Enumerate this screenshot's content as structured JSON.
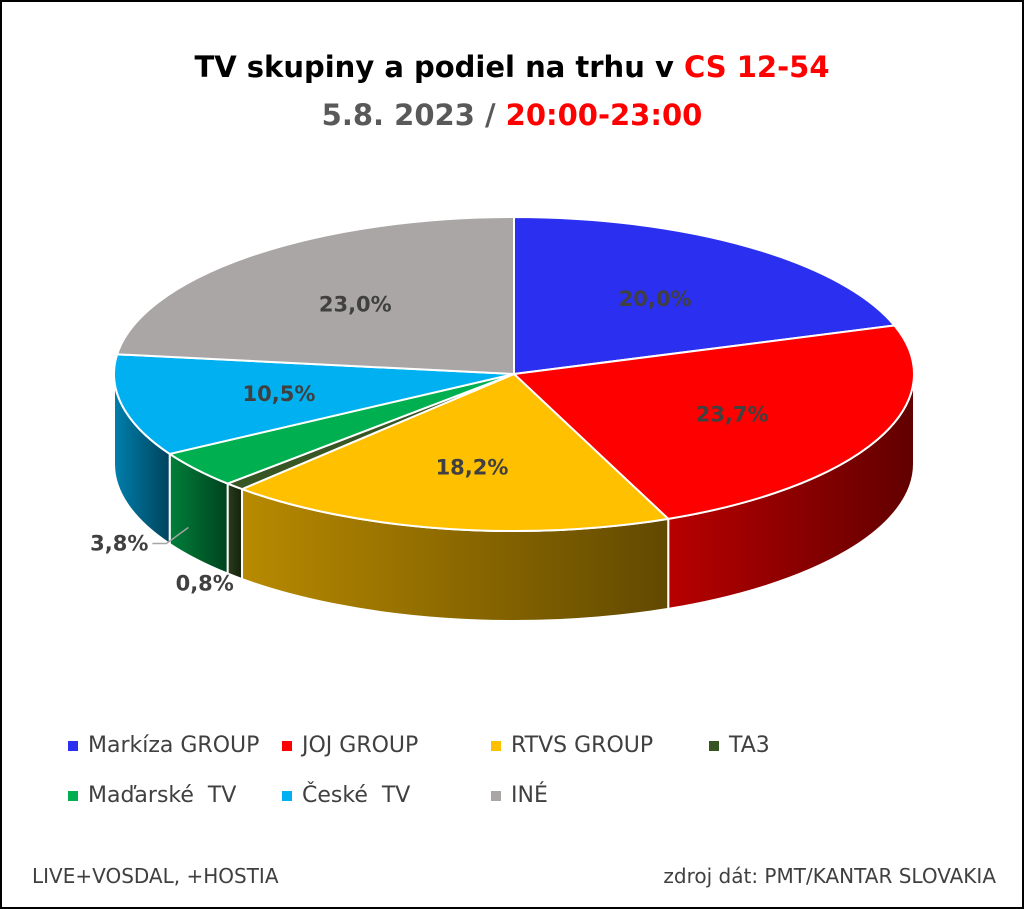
{
  "title": {
    "line1_prefix": "TV skupiny a podiel na trhu v ",
    "line1_highlight": "CS 12-54",
    "line2_prefix": "5.8. 2023 / ",
    "line2_highlight": "20:00-23:00"
  },
  "chart_data": {
    "type": "pie",
    "categories": [
      "Markíza GROUP",
      "JOJ GROUP",
      "RTVS GROUP",
      "TA3",
      "Maďarské  TV",
      "České  TV",
      "INÉ"
    ],
    "values": [
      20.0,
      23.7,
      18.2,
      0.8,
      3.8,
      10.5,
      23.0
    ],
    "labels": [
      "20,0%",
      "23,7%",
      "18,2%",
      "0,8%",
      "3,8%",
      "10,5%",
      "23,0%"
    ],
    "colors": [
      "#2b2ff0",
      "#ff0000",
      "#ffc000",
      "#375623",
      "#00b050",
      "#00b0f0",
      "#aaa6a6"
    ],
    "legend_position": "bottom"
  },
  "footer": {
    "left": "LIVE+VOSDAL, +HOSTIA",
    "right": "zdroj dát: PMT/KANTAR SLOVAKIA"
  }
}
